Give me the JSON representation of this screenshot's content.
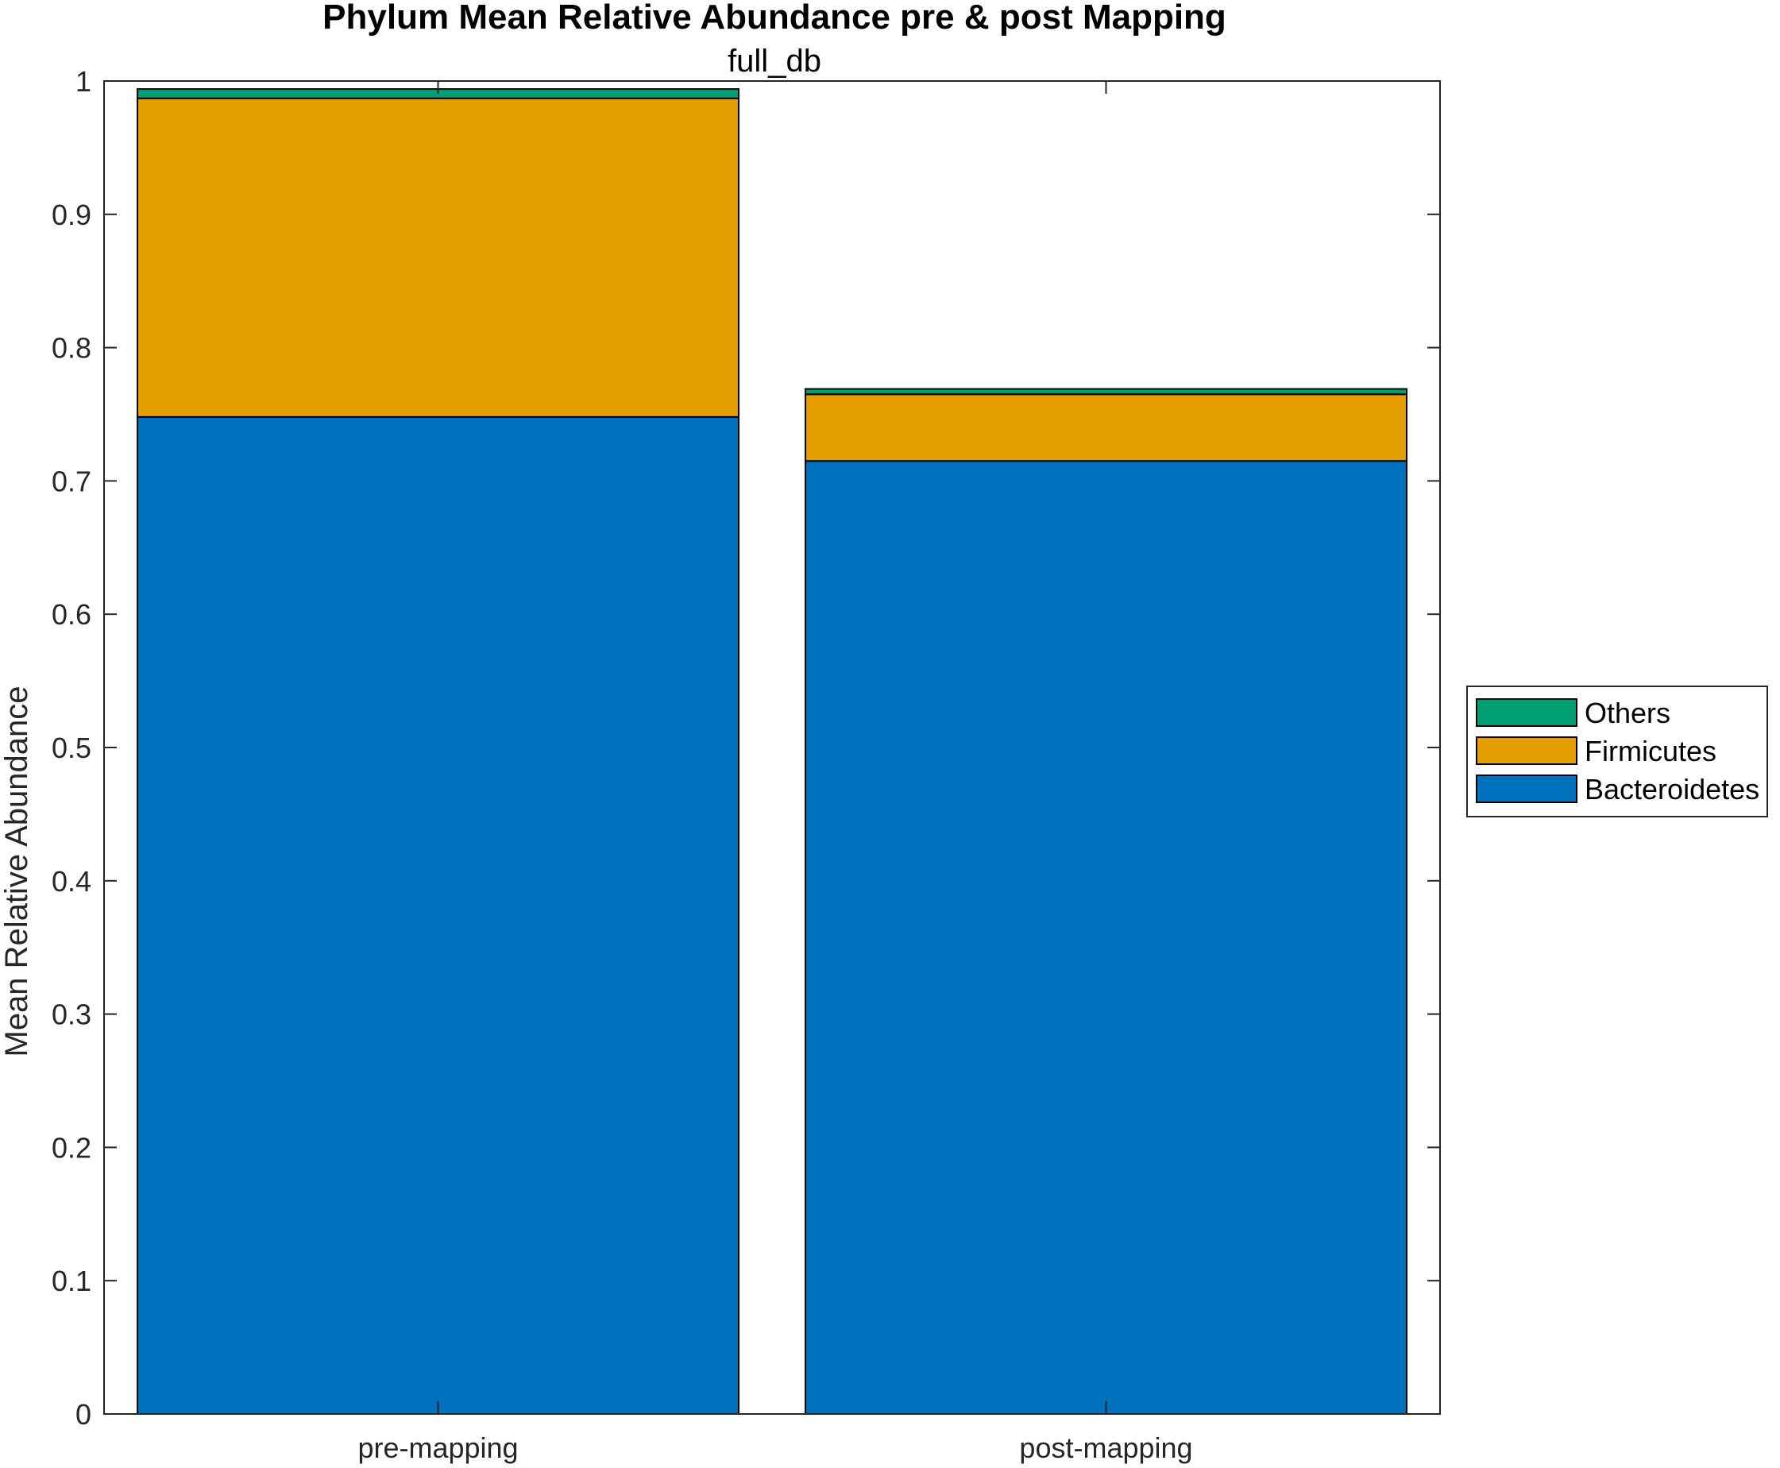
{
  "chart_data": {
    "type": "bar",
    "stacked": true,
    "title": "Phylum Mean Relative Abundance pre & post Mapping",
    "subtitle": "full_db",
    "xlabel": "",
    "ylabel": "Mean Relative Abundance",
    "categories": [
      "pre-mapping",
      "post-mapping"
    ],
    "ylim": [
      0,
      1
    ],
    "yticks": [
      0,
      0.1,
      0.2,
      0.3,
      0.4,
      0.5,
      0.6,
      0.7,
      0.8,
      0.9,
      1
    ],
    "ytick_labels": [
      "0",
      "0.1",
      "0.2",
      "0.3",
      "0.4",
      "0.5",
      "0.6",
      "0.7",
      "0.8",
      "0.9",
      "1"
    ],
    "grid": false,
    "legend_position": "right",
    "series": [
      {
        "name": "Bacteroidetes",
        "values": [
          0.748,
          0.715
        ],
        "color": "#0072BD"
      },
      {
        "name": "Firmicutes",
        "values": [
          0.239,
          0.05
        ],
        "color": "#E69F00"
      },
      {
        "name": "Others",
        "values": [
          0.007,
          0.004
        ],
        "color": "#009E73"
      }
    ],
    "legend_order": [
      "Others",
      "Firmicutes",
      "Bacteroidetes"
    ]
  }
}
